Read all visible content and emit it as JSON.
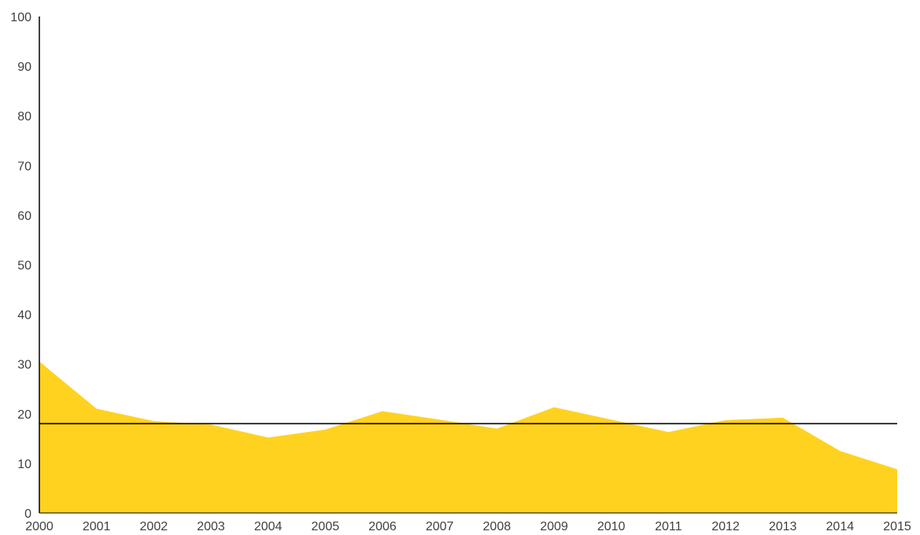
{
  "colors": {
    "area_fill": "#FFD21F",
    "axis": "#000000",
    "reference_line": "#000000",
    "tick_text": "#404040"
  },
  "chart_data": {
    "type": "area",
    "title": "",
    "xlabel": "",
    "ylabel": "",
    "x": [
      "2000",
      "2001",
      "2002",
      "2003",
      "2004",
      "2005",
      "2006",
      "2007",
      "2008",
      "2009",
      "2010",
      "2011",
      "2012",
      "2013",
      "2014",
      "2015"
    ],
    "values": [
      30.5,
      21,
      18.5,
      17.8,
      15.2,
      16.8,
      20.5,
      18.8,
      17,
      21.3,
      18.8,
      16.3,
      18.7,
      19.2,
      12.5,
      8.8
    ],
    "reference_line": 18,
    "ylim": [
      0,
      100
    ],
    "yticks": [
      0,
      10,
      20,
      30,
      40,
      50,
      60,
      70,
      80,
      90,
      100
    ],
    "grid": false,
    "legend": "none"
  }
}
